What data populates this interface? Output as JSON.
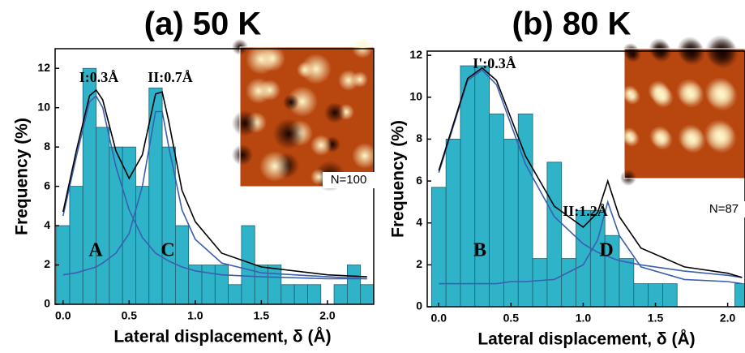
{
  "chart_data": [
    {
      "type": "histogram",
      "title": "(a) 50 K",
      "xlabel": "Lateral displacement, δ (Å)",
      "ylabel": "Frequency (%)",
      "bins": [
        -0.05,
        0.05,
        0.15,
        0.25,
        0.35,
        0.45,
        0.55,
        0.65,
        0.75,
        0.85,
        0.95,
        1.05,
        1.15,
        1.25,
        1.35,
        1.45,
        1.55,
        1.65,
        1.75,
        1.85,
        1.95,
        2.05,
        2.15,
        2.25,
        2.35
      ],
      "values": [
        4,
        6,
        12,
        9,
        8,
        8,
        6,
        11,
        8,
        4,
        2,
        2,
        2,
        1,
        4,
        2,
        2,
        1,
        1,
        1,
        0,
        1,
        2,
        1
      ],
      "color": "#2fb3c9",
      "xlim": [
        -0.06,
        2.35
      ],
      "ylim": [
        0,
        13
      ],
      "xticks": [
        {
          "value": 0,
          "label": "0.0"
        },
        0.5,
        {
          "value": 1,
          "label": "1.0"
        },
        1.5,
        {
          "value": 2,
          "label": "2.0"
        }
      ],
      "yticks": [
        0,
        2,
        4,
        6,
        8,
        10,
        12
      ],
      "fits": [
        {
          "color": "#3a5fb0",
          "x": [
            0,
            0.1,
            0.2,
            0.25,
            0.3,
            0.4,
            0.5,
            0.6,
            0.7,
            0.75,
            0.8,
            0.9,
            1.0,
            1.2,
            1.5,
            2.0,
            2.3
          ],
          "values": [
            4.5,
            7.5,
            10.3,
            10.6,
            10,
            7,
            4.8,
            3.4,
            2.6,
            2.4,
            2.2,
            1.9,
            1.7,
            1.5,
            1.4,
            1.3,
            1.3
          ]
        },
        {
          "color": "#3a5fb0",
          "x": [
            0,
            0.1,
            0.2,
            0.25,
            0.3,
            0.4,
            0.5,
            0.6,
            0.7,
            0.75,
            0.8,
            0.9,
            1.0,
            1.2,
            1.5,
            2.0,
            2.3
          ],
          "values": [
            1.5,
            1.6,
            1.8,
            1.9,
            2.1,
            2.6,
            3.6,
            6,
            9.8,
            9.8,
            8,
            4.8,
            3.3,
            2.1,
            1.6,
            1.4,
            1.3
          ]
        },
        {
          "color": "#000000",
          "x": [
            0,
            0.1,
            0.2,
            0.25,
            0.3,
            0.4,
            0.5,
            0.6,
            0.7,
            0.75,
            0.8,
            0.9,
            1.0,
            1.2,
            1.5,
            2.0,
            2.3
          ],
          "values": [
            4.7,
            7.8,
            10.6,
            10.9,
            10.4,
            7.8,
            6.4,
            7.6,
            10.7,
            10.8,
            9.3,
            5.8,
            4.2,
            2.6,
            1.9,
            1.5,
            1.4
          ]
        }
      ],
      "annotations": [
        "I:0.3Å",
        "II:0.7Å",
        "A",
        "C",
        "N=100"
      ]
    },
    {
      "type": "histogram",
      "title": "(b) 80 K",
      "xlabel": "Lateral displacement, δ (Å)",
      "ylabel": "Frequency (%)",
      "bins": [
        -0.05,
        0.05,
        0.15,
        0.25,
        0.35,
        0.45,
        0.55,
        0.65,
        0.75,
        0.85,
        0.95,
        1.05,
        1.15,
        1.25,
        1.35,
        1.45,
        1.55,
        1.65,
        1.75,
        1.85,
        1.95,
        2.05,
        2.15
      ],
      "values": [
        5.7,
        8,
        11.5,
        11.5,
        9.2,
        8,
        9.2,
        2.3,
        6.9,
        2.3,
        4.6,
        4.6,
        3.4,
        2.3,
        1.1,
        1.1,
        1.1,
        0,
        0,
        0,
        0,
        1.1
      ],
      "color": "#2fb3c9",
      "xlim": [
        -0.08,
        2.12
      ],
      "ylim": [
        0,
        12.2
      ],
      "xticks": [
        {
          "value": 0,
          "label": "0.0"
        },
        0.5,
        {
          "value": 1,
          "label": "1.0"
        },
        1.5,
        {
          "value": 2,
          "label": "2.0"
        }
      ],
      "yticks": [
        0,
        2,
        4,
        6,
        8,
        10,
        12
      ],
      "fits": [
        {
          "color": "#3a5fb0",
          "x": [
            0,
            0.1,
            0.2,
            0.3,
            0.4,
            0.5,
            0.6,
            0.8,
            1.0,
            1.1,
            1.17,
            1.25,
            1.4,
            1.7,
            2.0,
            2.1
          ],
          "values": [
            6.4,
            8.6,
            10.8,
            11.3,
            10.6,
            8.7,
            6.8,
            4.3,
            3,
            2.6,
            2.4,
            2.2,
            2,
            1.7,
            1.5,
            1.4
          ]
        },
        {
          "color": "#3a5fb0",
          "x": [
            0,
            0.1,
            0.2,
            0.3,
            0.4,
            0.5,
            0.6,
            0.8,
            1.0,
            1.1,
            1.17,
            1.25,
            1.4,
            1.7,
            2.0,
            2.1
          ],
          "values": [
            1.1,
            1.1,
            1.1,
            1.1,
            1.1,
            1.2,
            1.2,
            1.3,
            2,
            3.2,
            5,
            3.4,
            1.9,
            1.3,
            1.2,
            1.1
          ]
        },
        {
          "color": "#000000",
          "x": [
            0,
            0.1,
            0.2,
            0.3,
            0.4,
            0.5,
            0.6,
            0.8,
            1.0,
            1.1,
            1.17,
            1.25,
            1.4,
            1.7,
            2.0,
            2.1
          ],
          "values": [
            6.5,
            8.7,
            10.9,
            11.4,
            10.8,
            9,
            7.2,
            4.8,
            3.8,
            4.5,
            6,
            4.3,
            2.8,
            1.9,
            1.6,
            1.4
          ]
        }
      ],
      "annotations": [
        "I':0.3Å",
        "II:1.2Å",
        "B",
        "D",
        "N=87"
      ]
    }
  ]
}
